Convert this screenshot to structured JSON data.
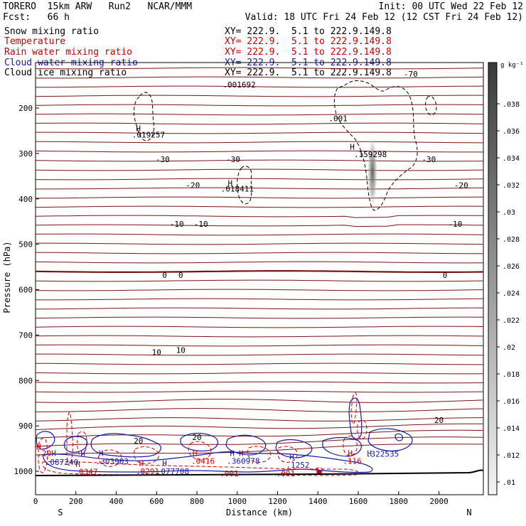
{
  "header": {
    "line1_left": "TORERO  15km ARW   Run2   NCAR/MMM",
    "line1_right": "Init: 00 UTC Wed 22 Feb 12",
    "line2_left": "Fcst:   66 h",
    "line2_right": "Valid: 18 UTC Fri 24 Feb 12 (12 CST Fri 24 Feb 12)"
  },
  "fields": [
    {
      "name": "Snow mixing ratio",
      "xy": "XY= 222.9.  5.1 to 222.9.149.8",
      "color": "#000000"
    },
    {
      "name": "Temperature",
      "xy": "XY= 222.9.  5.1 to 222.9.149.8",
      "color": "#cc0000"
    },
    {
      "name": "Rain water mixing ratio",
      "xy": "XY= 222.9.  5.1 to 222.9.149.8",
      "color": "#cc0000"
    },
    {
      "name": "Cloud water mixing ratio",
      "xy": "XY= 222.9.  5.1 to 222.9.149.8",
      "color": "#1a1aa8"
    },
    {
      "name": "Cloud ice mixing ratio",
      "xy": "XY= 222.9.  5.1 to 222.9.149.8",
      "color": "#000000"
    }
  ],
  "chart_data": {
    "type": "contour cross-section",
    "xlabel": "Distance (km)",
    "ylabel": "Pressure (hPa)",
    "x_ticks": [
      0,
      200,
      400,
      600,
      800,
      1000,
      1200,
      1400,
      1600,
      1800,
      2000
    ],
    "y_ticks": [
      200,
      300,
      400,
      500,
      600,
      700,
      800,
      900,
      1000
    ],
    "xlim": [
      0,
      2220
    ],
    "ylim_pressure_hPa": [
      1010,
      100
    ],
    "left_end_label": "S",
    "right_end_label": "N",
    "colorbar": {
      "unit": "g kg⁻¹",
      "ticks": [
        ".038",
        ".036",
        ".034",
        ".032",
        ".03",
        ".028",
        ".026",
        ".024",
        ".022",
        ".02",
        ".018",
        ".016",
        ".014",
        ".012",
        ".01"
      ],
      "colors": {
        "light": "#f0f0f0",
        "dark": "#444444"
      }
    },
    "temperature_contours": {
      "color": "#7a1414",
      "labels": [
        {
          "text": "-70",
          "x": 1860,
          "p": 125
        },
        {
          "text": "-30",
          "x": 980,
          "p": 313
        },
        {
          "text": "-30",
          "x": 630,
          "p": 313
        },
        {
          "text": "-30",
          "x": 1950,
          "p": 313
        },
        {
          "text": "-20",
          "x": 780,
          "p": 370
        },
        {
          "text": "-20",
          "x": 2110,
          "p": 370
        },
        {
          "text": "-10",
          "x": 700,
          "p": 455
        },
        {
          "text": "-10",
          "x": 820,
          "p": 455
        },
        {
          "text": "-10",
          "x": 2080,
          "p": 455
        },
        {
          "text": "0",
          "x": 640,
          "p": 568
        },
        {
          "text": "0",
          "x": 720,
          "p": 568
        },
        {
          "text": "0",
          "x": 2030,
          "p": 568
        },
        {
          "text": "10",
          "x": 600,
          "p": 738
        },
        {
          "text": "10",
          "x": 720,
          "p": 733
        },
        {
          "text": "20",
          "x": 510,
          "p": 933
        },
        {
          "text": "20",
          "x": 800,
          "p": 925
        },
        {
          "text": "20",
          "x": 2000,
          "p": 887
        }
      ]
    },
    "point_labels": [
      {
        "text": ".001692",
        "x": 1010,
        "p": 148,
        "color": "#000000"
      },
      {
        "text": "H",
        "x": 510,
        "p": 245,
        "color": "#000000"
      },
      {
        "text": ".019257",
        "x": 560,
        "p": 259,
        "color": "#000000"
      },
      {
        "text": ".001",
        "x": 1500,
        "p": 223,
        "color": "#000000"
      },
      {
        "text": "H",
        "x": 1570,
        "p": 285,
        "color": "#000000"
      },
      {
        "text": ".159298",
        "x": 1660,
        "p": 302,
        "color": "#000000"
      },
      {
        "text": "H",
        "x": 965,
        "p": 365,
        "color": "#000000"
      },
      {
        "text": ".018411",
        "x": 1000,
        "p": 378,
        "color": "#000000"
      },
      {
        "text": "H",
        "x": 15,
        "p": 946,
        "color": "#cc0000"
      },
      {
        "text": ".20H",
        "x": 55,
        "p": 960,
        "color": "#cc0000"
      },
      {
        "text": ".087240",
        "x": 130,
        "p": 980,
        "color": "#1a1aa8"
      },
      {
        "text": "H",
        "x": 235,
        "p": 960,
        "color": "#1a1aa8"
      },
      {
        "text": "H",
        "x": 325,
        "p": 960,
        "color": "#1a1aa8"
      },
      {
        "text": ".303903",
        "x": 380,
        "p": 978,
        "color": "#1a1aa8"
      },
      {
        "text": "H",
        "x": 210,
        "p": 984,
        "color": "#cc0000"
      },
      {
        "text": ".0347",
        "x": 250,
        "p": 1001,
        "color": "#cc0000"
      },
      {
        "text": "H",
        "x": 525,
        "p": 982,
        "color": "#cc0000"
      },
      {
        "text": "H",
        "x": 640,
        "p": 982,
        "color": "#1a1aa8"
      },
      {
        "text": ".0291",
        "x": 555,
        "p": 1000,
        "color": "#cc0000"
      },
      {
        "text": ".077708",
        "x": 680,
        "p": 1000,
        "color": "#1a1aa8"
      },
      {
        "text": "H",
        "x": 790,
        "p": 960,
        "color": "#cc0000"
      },
      {
        "text": "H",
        "x": 975,
        "p": 960,
        "color": "#1a1aa8"
      },
      {
        "text": "H",
        "x": 1020,
        "p": 960,
        "color": "#cc0000"
      },
      {
        "text": ".0416",
        "x": 830,
        "p": 977,
        "color": "#cc0000"
      },
      {
        "text": ".360978",
        "x": 1030,
        "p": 977,
        "color": "#1a1aa8"
      },
      {
        "text": "H",
        "x": 1270,
        "p": 968,
        "color": "#1a1aa8"
      },
      {
        "text": ".1252",
        "x": 1300,
        "p": 986,
        "color": "#1a1aa8"
      },
      {
        "text": "H",
        "x": 1560,
        "p": 960,
        "color": "#cc0000"
      },
      {
        "text": "H",
        "x": 1655,
        "p": 960,
        "color": "#1a1aa8"
      },
      {
        "text": ".116",
        "x": 1570,
        "p": 977,
        "color": "#cc0000"
      },
      {
        "text": ".322535",
        "x": 1720,
        "p": 962,
        "color": "#1a1aa8"
      },
      {
        "text": ".001",
        "x": 960,
        "p": 1005,
        "color": "#cc0000"
      },
      {
        "text": ".001",
        "x": 1240,
        "p": 1005,
        "color": "#cc0000"
      }
    ]
  }
}
